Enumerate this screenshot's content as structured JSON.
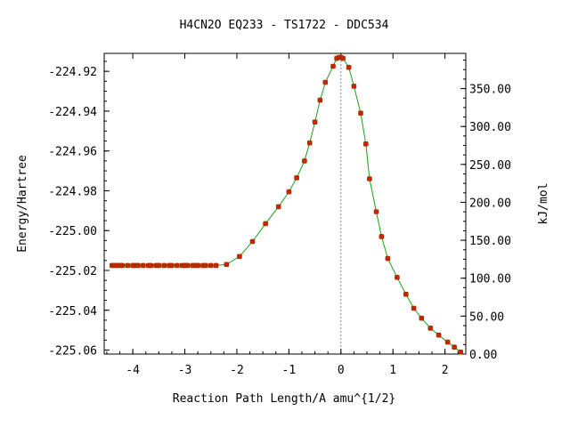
{
  "chart_data": {
    "type": "scatter",
    "title": "H4CN2O   EQ233 - TS1722 - DDC534",
    "xlabel": "Reaction Path Length/A amu^{1/2}",
    "ylabel": "Energy/Hartree",
    "y2label": "kJ/mol",
    "xlim": [
      -4.55,
      2.4
    ],
    "ylim": [
      -225.062,
      -224.911
    ],
    "y2lim": [
      0.0,
      396.4
    ],
    "x_ticks": [
      "-4",
      "-3",
      "-2",
      "-1",
      "0",
      "1",
      "2"
    ],
    "x_tick_values": [
      -4,
      -3,
      -2,
      -1,
      0,
      1,
      2
    ],
    "y_ticks": [
      "-224.92",
      "-224.94",
      "-224.96",
      "-224.98",
      "-225.00",
      "-225.02",
      "-225.04",
      "-225.06"
    ],
    "y_tick_values": [
      -224.92,
      -224.94,
      -224.96,
      -224.98,
      -225.0,
      -225.02,
      -225.04,
      -225.06
    ],
    "y2_ticks": [
      "350.00",
      "300.00",
      "250.00",
      "200.00",
      "150.00",
      "100.00",
      "50.00",
      "0.00"
    ],
    "y2_tick_values": [
      350,
      300,
      250,
      200,
      150,
      100,
      50,
      0
    ],
    "ts_marker_x": 0.0,
    "series": [
      {
        "color": "#cc2200",
        "line_color": "#1aa01a",
        "points": [
          [
            -4.4,
            -225.0175
          ],
          [
            -4.35,
            -225.0175
          ],
          [
            -4.3,
            -225.0175
          ],
          [
            -4.25,
            -225.0175
          ],
          [
            -4.2,
            -225.0175
          ],
          [
            -4.1,
            -225.0175
          ],
          [
            -4.0,
            -225.0175
          ],
          [
            -3.95,
            -225.0175
          ],
          [
            -3.9,
            -225.0175
          ],
          [
            -3.8,
            -225.0175
          ],
          [
            -3.7,
            -225.0175
          ],
          [
            -3.65,
            -225.0175
          ],
          [
            -3.55,
            -225.0175
          ],
          [
            -3.5,
            -225.0175
          ],
          [
            -3.4,
            -225.0175
          ],
          [
            -3.3,
            -225.0175
          ],
          [
            -3.25,
            -225.0175
          ],
          [
            -3.15,
            -225.0175
          ],
          [
            -3.05,
            -225.0175
          ],
          [
            -3.0,
            -225.0175
          ],
          [
            -2.95,
            -225.0175
          ],
          [
            -2.85,
            -225.0175
          ],
          [
            -2.8,
            -225.0175
          ],
          [
            -2.75,
            -225.0175
          ],
          [
            -2.65,
            -225.0175
          ],
          [
            -2.6,
            -225.0175
          ],
          [
            -2.5,
            -225.0175
          ],
          [
            -2.4,
            -225.0175
          ],
          [
            -2.2,
            -225.017
          ],
          [
            -1.95,
            -225.013
          ],
          [
            -1.7,
            -225.0055
          ],
          [
            -1.45,
            -224.9965
          ],
          [
            -1.2,
            -224.988
          ],
          [
            -1.0,
            -224.9805
          ],
          [
            -0.85,
            -224.9735
          ],
          [
            -0.7,
            -224.965
          ],
          [
            -0.6,
            -224.956
          ],
          [
            -0.5,
            -224.9455
          ],
          [
            -0.4,
            -224.9345
          ],
          [
            -0.3,
            -224.9255
          ],
          [
            -0.15,
            -224.9175
          ],
          [
            -0.08,
            -224.9135
          ],
          [
            -0.04,
            -224.913
          ],
          [
            0.0,
            -224.913
          ],
          [
            0.04,
            -224.9135
          ],
          [
            0.15,
            -224.918
          ],
          [
            0.25,
            -224.9275
          ],
          [
            0.38,
            -224.941
          ],
          [
            0.48,
            -224.9565
          ],
          [
            0.55,
            -224.974
          ],
          [
            0.68,
            -224.9905
          ],
          [
            0.78,
            -225.003
          ],
          [
            0.9,
            -225.014
          ],
          [
            1.08,
            -225.0235
          ],
          [
            1.25,
            -225.032
          ],
          [
            1.4,
            -225.039
          ],
          [
            1.55,
            -225.044
          ],
          [
            1.72,
            -225.049
          ],
          [
            1.88,
            -225.0525
          ],
          [
            2.05,
            -225.056
          ],
          [
            2.18,
            -225.0585
          ],
          [
            2.3,
            -225.061
          ]
        ]
      }
    ]
  }
}
